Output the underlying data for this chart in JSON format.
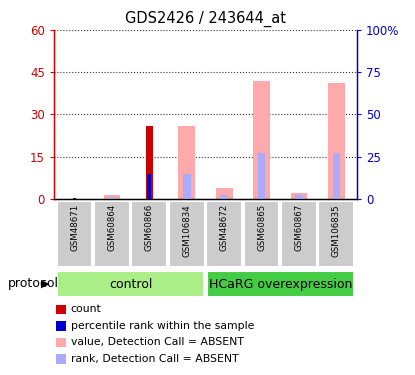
{
  "title": "GDS2426 / 243644_at",
  "samples": [
    "GSM48671",
    "GSM60864",
    "GSM60866",
    "GSM106834",
    "GSM48672",
    "GSM60865",
    "GSM60867",
    "GSM106835"
  ],
  "n_control": 4,
  "count_values": [
    0,
    0,
    26,
    0,
    0,
    0,
    0,
    0
  ],
  "rank_values": [
    0.5,
    0,
    14.5,
    0,
    0,
    0,
    0,
    0
  ],
  "absent_value_values": [
    0,
    1.5,
    0,
    26,
    4,
    42,
    2,
    41
  ],
  "absent_rank_values": [
    0,
    1,
    0,
    14.5,
    2,
    27,
    2,
    27
  ],
  "left_ylim": [
    0,
    60
  ],
  "right_ylim": [
    0,
    100
  ],
  "left_yticks": [
    0,
    15,
    30,
    45,
    60
  ],
  "right_yticks": [
    0,
    25,
    50,
    75,
    100
  ],
  "right_yticklabels": [
    "0",
    "25",
    "50",
    "75",
    "100%"
  ],
  "left_axis_color": "#cc0000",
  "right_axis_color": "#0000cc",
  "count_color": "#cc0000",
  "rank_color": "#0000cc",
  "absent_value_color": "#ffaaaa",
  "absent_rank_color": "#aaaaff",
  "control_color": "#aaee88",
  "hcarg_color": "#44cc44",
  "sample_box_color": "#cccccc",
  "dotted_line_color": "#333333",
  "legend_items": [
    {
      "label": "count",
      "color": "#cc0000"
    },
    {
      "label": "percentile rank within the sample",
      "color": "#0000cc"
    },
    {
      "label": "value, Detection Call = ABSENT",
      "color": "#ffaaaa"
    },
    {
      "label": "rank, Detection Call = ABSENT",
      "color": "#aaaaff"
    }
  ]
}
